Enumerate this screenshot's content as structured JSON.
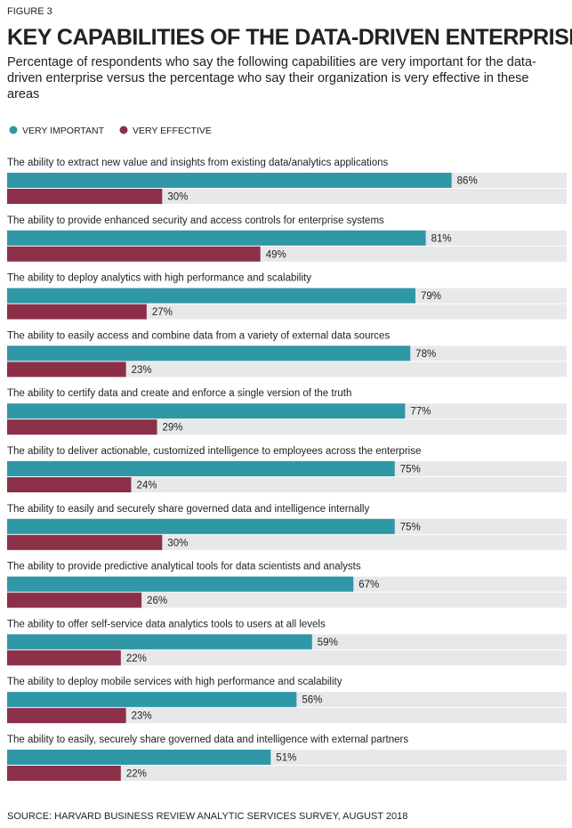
{
  "chart_data": {
    "type": "bar",
    "figure_label": "FIGURE 3",
    "title": "KEY CAPABILITIES OF THE DATA-DRIVEN ENTERPRISE",
    "subtitle": "Percentage of respondents who say the following capabilities are very important for the data-driven enterprise versus the percentage who say their organization is very effective in these areas",
    "categories": [
      "The ability to extract new value and insights from existing data/analytics applications",
      "The ability to provide enhanced security and access controls for enterprise systems",
      "The ability to deploy analytics with high performance and scalability",
      "The ability to easily access and combine data from a variety of external data sources",
      "The ability to certify data and create and enforce a single version of the truth",
      "The ability to deliver actionable, customized intelligence to employees across the enterprise",
      "The ability to easily and securely share governed data and intelligence internally",
      "The ability to provide predictive analytical tools for data scientists and analysts",
      "The ability to offer self-service data analytics tools to users at all levels",
      "The ability to deploy mobile services with high performance and scalability",
      "The ability to easily, securely share governed data and intelligence with external partners"
    ],
    "series": [
      {
        "name": "VERY IMPORTANT",
        "color": "#2f97a6",
        "values": [
          86,
          81,
          79,
          78,
          77,
          75,
          75,
          67,
          59,
          56,
          51
        ],
        "value_labels": [
          "86%",
          "81%",
          "79%",
          "78%",
          "77%",
          "75%",
          "75%",
          "67%",
          "59%",
          "56%",
          "51%"
        ]
      },
      {
        "name": "VERY EFFECTIVE",
        "color": "#8c2f48",
        "values": [
          30,
          49,
          27,
          23,
          29,
          24,
          30,
          26,
          22,
          23,
          22
        ],
        "value_labels": [
          "30%",
          "49%",
          "27%",
          "23%",
          "29%",
          "24%",
          "30%",
          "26%",
          "22%",
          "23%",
          "22%"
        ]
      }
    ],
    "source": "SOURCE: HARVARD BUSINESS REVIEW ANALYTIC SERVICES SURVEY, AUGUST 2018"
  }
}
